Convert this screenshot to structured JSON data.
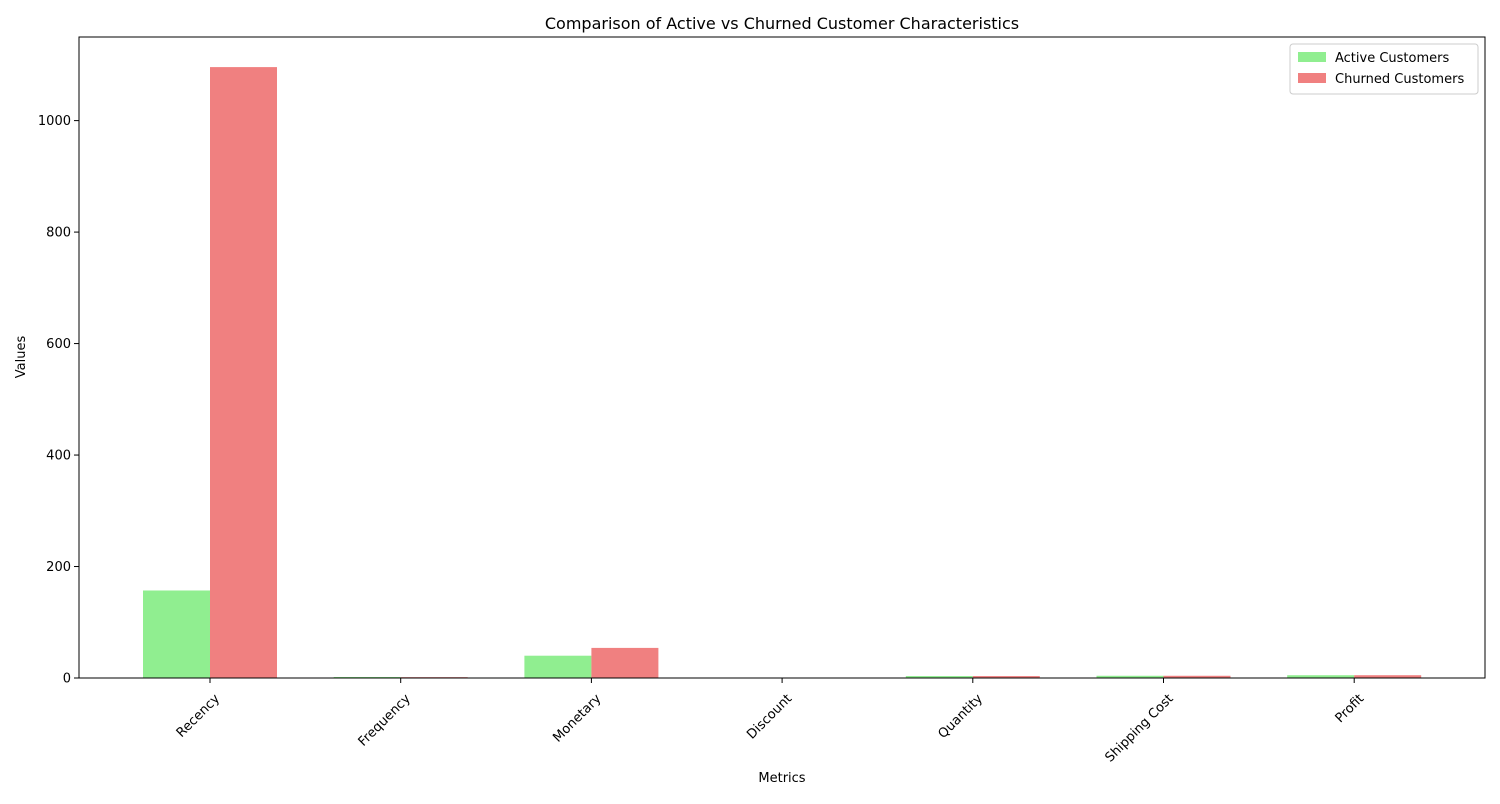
{
  "chart_data": {
    "type": "bar",
    "title": "Comparison of Active vs Churned Customer Characteristics",
    "xlabel": "Metrics",
    "ylabel": "Values",
    "categories": [
      "Recency",
      "Frequency",
      "Monetary",
      "Discount",
      "Quantity",
      "Shipping Cost",
      "Profit"
    ],
    "series": [
      {
        "name": "Active Customers",
        "color": "#90ee90",
        "values": [
          157,
          1.8,
          40,
          0.1,
          3.5,
          4,
          5
        ]
      },
      {
        "name": "Churned Customers",
        "color": "#f08080",
        "values": [
          1096,
          1.5,
          54,
          0.1,
          3.5,
          4,
          5
        ]
      }
    ],
    "ylim": [
      0,
      1150
    ],
    "yticks": [
      0,
      200,
      400,
      600,
      800,
      1000
    ],
    "grid": false,
    "legend_position": "top-right"
  }
}
